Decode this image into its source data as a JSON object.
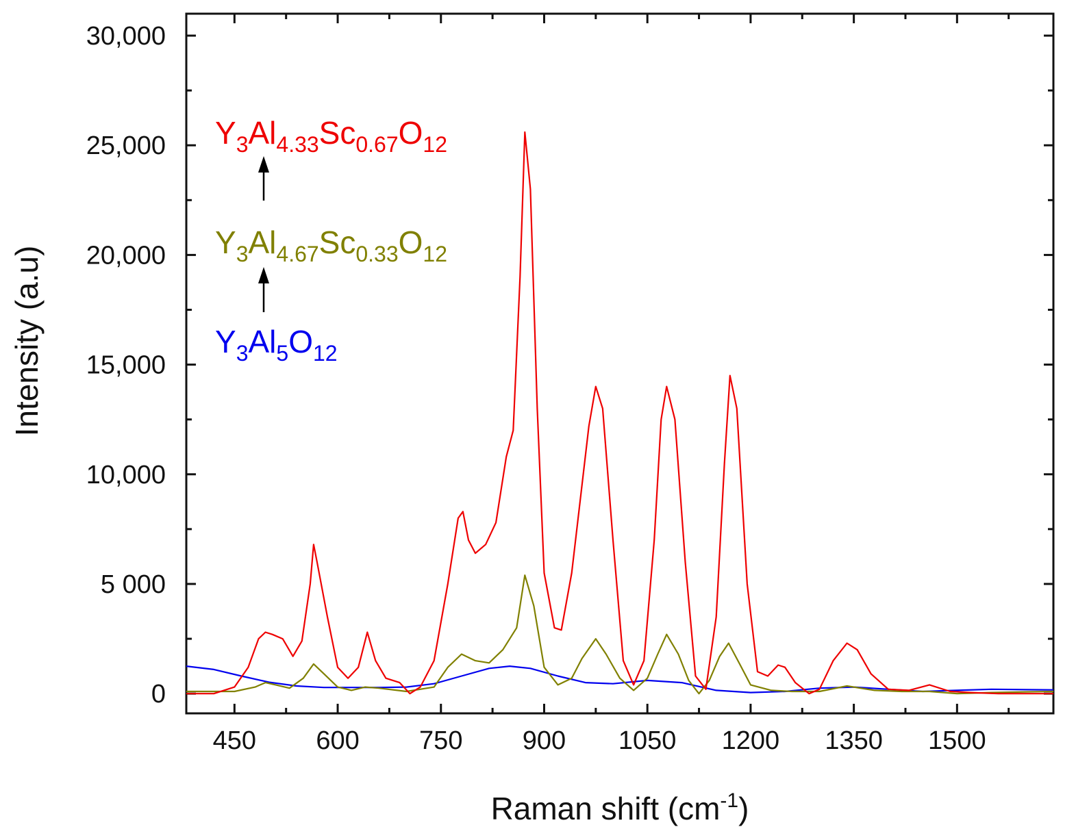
{
  "chart_data": {
    "type": "line",
    "title": "",
    "xlabel": "Raman shift (cm",
    "xlabel_sup": "-1",
    "xlabel_tail": ")",
    "ylabel": "Intensity (a.u)",
    "xlim": [
      380,
      1640
    ],
    "ylim": [
      -900,
      31000
    ],
    "xticks": [
      450,
      600,
      750,
      900,
      1050,
      1200,
      1350,
      1500
    ],
    "xtick_labels": [
      "450",
      "600",
      "750",
      "900",
      "1050",
      "1200",
      "1350",
      "1500"
    ],
    "yticks": [
      0,
      5000,
      10000,
      15000,
      20000,
      25000,
      30000
    ],
    "ytick_labels": [
      "0",
      "5 000",
      "10,000",
      "15,000",
      "20,000",
      "25,000",
      "30,000"
    ],
    "series": [
      {
        "name": "Y3Al5O12",
        "color": "#0000ee",
        "x": [
          380,
          420,
          460,
          500,
          540,
          580,
          620,
          660,
          700,
          740,
          780,
          820,
          850,
          880,
          920,
          960,
          1000,
          1050,
          1100,
          1150,
          1200,
          1250,
          1300,
          1350,
          1400,
          1450,
          1500,
          1550,
          1600,
          1640
        ],
        "y": [
          1250,
          1100,
          800,
          520,
          350,
          280,
          280,
          280,
          300,
          450,
          800,
          1150,
          1250,
          1150,
          800,
          500,
          450,
          600,
          500,
          150,
          50,
          100,
          250,
          300,
          200,
          100,
          150,
          200,
          180,
          170
        ]
      },
      {
        "name": "Y3Al4.67Sc0.33O12",
        "color": "#808000",
        "x": [
          380,
          450,
          480,
          495,
          510,
          530,
          550,
          565,
          580,
          600,
          620,
          640,
          660,
          700,
          740,
          760,
          780,
          800,
          820,
          840,
          860,
          872,
          885,
          900,
          920,
          940,
          955,
          975,
          990,
          1010,
          1030,
          1050,
          1065,
          1078,
          1095,
          1110,
          1125,
          1140,
          1155,
          1168,
          1185,
          1200,
          1230,
          1260,
          1300,
          1340,
          1380,
          1420,
          1460,
          1500,
          1550,
          1600,
          1640
        ],
        "y": [
          100,
          100,
          300,
          500,
          400,
          250,
          700,
          1350,
          900,
          300,
          150,
          300,
          250,
          100,
          300,
          1200,
          1800,
          1500,
          1400,
          2000,
          3000,
          5400,
          4000,
          1200,
          400,
          700,
          1600,
          2500,
          1800,
          700,
          150,
          700,
          1800,
          2700,
          1800,
          600,
          0,
          600,
          1700,
          2300,
          1300,
          400,
          150,
          100,
          100,
          350,
          150,
          100,
          100,
          0,
          50,
          80,
          100
        ]
      },
      {
        "name": "Y3Al4.33Sc0.67O12",
        "color": "#ee0000",
        "x": [
          380,
          420,
          450,
          470,
          485,
          495,
          505,
          520,
          535,
          548,
          560,
          565,
          570,
          585,
          600,
          615,
          630,
          643,
          655,
          670,
          690,
          705,
          720,
          740,
          760,
          775,
          782,
          790,
          800,
          815,
          830,
          845,
          855,
          865,
          872,
          880,
          890,
          900,
          915,
          925,
          940,
          955,
          965,
          975,
          985,
          1000,
          1015,
          1030,
          1045,
          1060,
          1070,
          1078,
          1090,
          1105,
          1120,
          1135,
          1150,
          1162,
          1170,
          1180,
          1195,
          1210,
          1225,
          1240,
          1250,
          1265,
          1285,
          1300,
          1320,
          1340,
          1355,
          1375,
          1400,
          1430,
          1460,
          1490,
          1520,
          1560,
          1600,
          1640
        ],
        "y": [
          0,
          0,
          300,
          1200,
          2500,
          2800,
          2700,
          2500,
          1700,
          2400,
          5000,
          6800,
          6000,
          3500,
          1200,
          700,
          1200,
          2800,
          1500,
          700,
          500,
          0,
          300,
          1500,
          5000,
          8000,
          8300,
          7000,
          6400,
          6800,
          7800,
          10800,
          12000,
          19000,
          25600,
          23000,
          13000,
          5500,
          3000,
          2900,
          5500,
          9500,
          12200,
          14000,
          13000,
          7000,
          1500,
          400,
          1500,
          7000,
          12500,
          14000,
          12500,
          6000,
          800,
          200,
          3500,
          10500,
          14500,
          13000,
          5000,
          1000,
          800,
          1300,
          1200,
          500,
          0,
          200,
          1500,
          2300,
          2000,
          900,
          200,
          150,
          400,
          100,
          50,
          0,
          0,
          0
        ]
      }
    ],
    "annotations": {
      "red": {
        "base": "Y",
        "s1": "3",
        "m1": "Al",
        "s2": "4.33",
        "m2": "Sc",
        "s3": "0.67",
        "m3": "O",
        "s4": "12"
      },
      "olive": {
        "base": "Y",
        "s1": "3",
        "m1": "Al",
        "s2": "4.67",
        "m2": "Sc",
        "s3": "0.33",
        "m3": "O",
        "s4": "12"
      },
      "blue": {
        "base": "Y",
        "s1": "3",
        "m1": "Al",
        "s2": "5",
        "m2": "O",
        "s3": "12"
      }
    }
  }
}
